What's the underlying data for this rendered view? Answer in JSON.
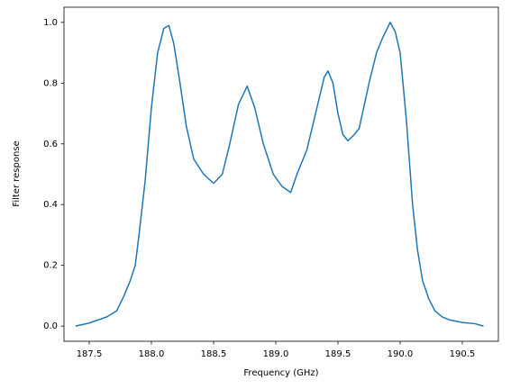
{
  "chart_data": {
    "type": "line",
    "xlabel": "Frequency (GHz)",
    "ylabel": "Filter response",
    "x": [
      187.39,
      187.5,
      187.64,
      187.72,
      187.78,
      187.83,
      187.87,
      187.9,
      187.95,
      188.0,
      188.05,
      188.1,
      188.14,
      188.18,
      188.23,
      188.28,
      188.34,
      188.42,
      188.5,
      188.57,
      188.63,
      188.7,
      188.77,
      188.83,
      188.9,
      188.98,
      189.05,
      189.12,
      189.17,
      189.25,
      189.32,
      189.39,
      189.42,
      189.46,
      189.5,
      189.54,
      189.58,
      189.63,
      189.67,
      189.75,
      189.81,
      189.86,
      189.92,
      189.96,
      190.0,
      190.05,
      190.1,
      190.14,
      190.18,
      190.23,
      190.28,
      190.34,
      190.4,
      190.5,
      190.6,
      190.67
    ],
    "series": [
      {
        "name": "Filter response",
        "color": "#1f77b4",
        "values": [
          0.0,
          0.01,
          0.03,
          0.05,
          0.1,
          0.15,
          0.2,
          0.3,
          0.48,
          0.72,
          0.9,
          0.98,
          0.99,
          0.93,
          0.8,
          0.66,
          0.55,
          0.5,
          0.47,
          0.5,
          0.6,
          0.73,
          0.79,
          0.72,
          0.6,
          0.5,
          0.46,
          0.44,
          0.5,
          0.58,
          0.7,
          0.82,
          0.84,
          0.8,
          0.7,
          0.63,
          0.61,
          0.63,
          0.65,
          0.8,
          0.9,
          0.95,
          1.0,
          0.97,
          0.9,
          0.68,
          0.4,
          0.25,
          0.15,
          0.09,
          0.05,
          0.03,
          0.02,
          0.012,
          0.008,
          0.0
        ]
      }
    ],
    "xlim": [
      187.297,
      190.79
    ],
    "ylim": [
      -0.05,
      1.05
    ],
    "xticks": [
      187.5,
      {
        "value": 188,
        "label": "188.0"
      },
      188.5,
      {
        "value": 189,
        "label": "189.0"
      },
      189.5,
      {
        "value": 190,
        "label": "190.0"
      },
      190.5
    ],
    "yticks": [
      {
        "value": 0,
        "label": "0.0"
      },
      0.2,
      0.4,
      0.6,
      0.8,
      {
        "value": 1,
        "label": "1.0"
      }
    ],
    "grid": false
  }
}
